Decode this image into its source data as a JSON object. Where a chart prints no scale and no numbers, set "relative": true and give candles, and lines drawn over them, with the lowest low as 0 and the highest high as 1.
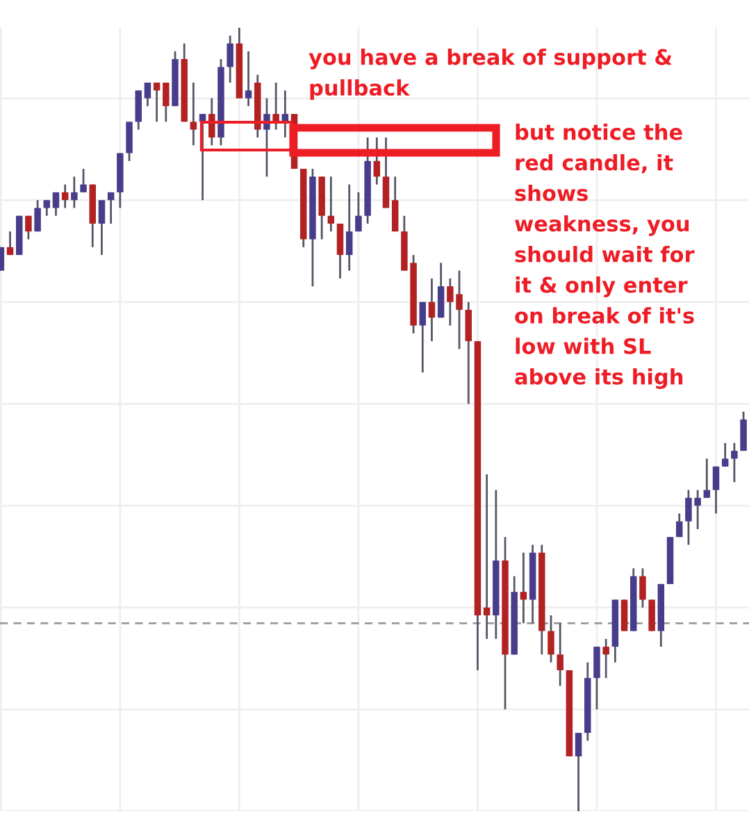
{
  "chart_data": {
    "type": "candlestick",
    "relative": true,
    "grid": true,
    "categories": [
      null,
      null,
      null,
      null,
      null,
      null,
      null,
      null,
      null,
      null,
      null,
      null,
      null,
      null,
      null,
      null,
      null,
      null,
      null,
      null,
      null,
      null,
      null,
      null,
      null,
      null,
      null,
      null,
      null,
      null,
      null,
      null,
      null,
      null,
      null,
      null,
      null,
      null,
      null,
      null,
      null,
      null,
      null,
      null,
      null,
      null,
      null,
      null,
      null,
      null,
      null,
      null,
      null,
      null,
      null,
      null,
      null,
      null,
      null,
      null,
      null,
      null,
      null,
      null,
      null,
      null,
      null,
      null,
      null,
      null,
      null,
      null,
      null,
      null,
      null,
      null,
      null,
      null,
      null,
      null,
      null,
      null
    ],
    "ohlc": [
      [
        0.69,
        0.72,
        0.69,
        0.72
      ],
      [
        0.72,
        0.74,
        0.71,
        0.71
      ],
      [
        0.71,
        0.76,
        0.71,
        0.76
      ],
      [
        0.76,
        0.76,
        0.73,
        0.74
      ],
      [
        0.74,
        0.78,
        0.74,
        0.77
      ],
      [
        0.77,
        0.78,
        0.76,
        0.78
      ],
      [
        0.77,
        0.79,
        0.76,
        0.79
      ],
      [
        0.79,
        0.8,
        0.77,
        0.78
      ],
      [
        0.78,
        0.81,
        0.77,
        0.79
      ],
      [
        0.79,
        0.82,
        0.79,
        0.8
      ],
      [
        0.8,
        0.8,
        0.72,
        0.75
      ],
      [
        0.75,
        0.78,
        0.71,
        0.78
      ],
      [
        0.78,
        0.79,
        0.75,
        0.79
      ],
      [
        0.79,
        0.84,
        0.77,
        0.84
      ],
      [
        0.84,
        0.88,
        0.83,
        0.88
      ],
      [
        0.88,
        0.92,
        0.87,
        0.92
      ],
      [
        0.91,
        0.93,
        0.9,
        0.93
      ],
      [
        0.93,
        0.93,
        0.88,
        0.92
      ],
      [
        0.93,
        0.93,
        0.88,
        0.9
      ],
      [
        0.9,
        0.97,
        0.9,
        0.96
      ],
      [
        0.96,
        0.98,
        0.88,
        0.88
      ],
      [
        0.88,
        0.93,
        0.85,
        0.87
      ],
      [
        0.88,
        0.89,
        0.78,
        0.89
      ],
      [
        0.89,
        0.91,
        0.85,
        0.86
      ],
      [
        0.86,
        0.96,
        0.85,
        0.95
      ],
      [
        0.95,
        0.99,
        0.93,
        0.98
      ],
      [
        0.98,
        1,
        0.91,
        0.91
      ],
      [
        0.91,
        0.97,
        0.9,
        0.92
      ],
      [
        0.93,
        0.94,
        0.86,
        0.87
      ],
      [
        0.87,
        0.91,
        0.81,
        0.89
      ],
      [
        0.89,
        0.93,
        0.87,
        0.88
      ],
      [
        0.88,
        0.92,
        0.86,
        0.89
      ],
      [
        0.89,
        0.89,
        0.82,
        0.82
      ],
      [
        0.82,
        0.82,
        0.72,
        0.73
      ],
      [
        0.73,
        0.82,
        0.67,
        0.81
      ],
      [
        0.81,
        0.81,
        0.73,
        0.76
      ],
      [
        0.76,
        0.81,
        0.74,
        0.75
      ],
      [
        0.75,
        0.75,
        0.68,
        0.71
      ],
      [
        0.71,
        0.8,
        0.69,
        0.74
      ],
      [
        0.74,
        0.79,
        0.74,
        0.76
      ],
      [
        0.76,
        0.86,
        0.75,
        0.83
      ],
      [
        0.83,
        0.86,
        0.8,
        0.81
      ],
      [
        0.81,
        0.86,
        0.77,
        0.77
      ],
      [
        0.78,
        0.81,
        0.74,
        0.74
      ],
      [
        0.74,
        0.76,
        0.69,
        0.69
      ],
      [
        0.7,
        0.71,
        0.61,
        0.62
      ],
      [
        0.62,
        0.65,
        0.56,
        0.65
      ],
      [
        0.65,
        0.68,
        0.6,
        0.63
      ],
      [
        0.63,
        0.7,
        0.63,
        0.67
      ],
      [
        0.67,
        0.68,
        0.62,
        0.65
      ],
      [
        0.66,
        0.69,
        0.59,
        0.64
      ],
      [
        0.64,
        0.65,
        0.52,
        0.6
      ],
      [
        0.6,
        0.6,
        0.18,
        0.25
      ],
      [
        0.26,
        0.43,
        0.22,
        0.25
      ],
      [
        0.25,
        0.41,
        0.22,
        0.32
      ],
      [
        0.32,
        0.35,
        0.13,
        0.2
      ],
      [
        0.2,
        0.3,
        0.2,
        0.28
      ],
      [
        0.28,
        0.33,
        0.24,
        0.27
      ],
      [
        0.27,
        0.34,
        0.24,
        0.33
      ],
      [
        0.33,
        0.34,
        0.2,
        0.23
      ],
      [
        0.23,
        0.25,
        0.19,
        0.2
      ],
      [
        0.2,
        0.24,
        0.16,
        0.18
      ],
      [
        0.18,
        0.18,
        0.07,
        0.07
      ],
      [
        0.07,
        0.1,
        0,
        0.1
      ],
      [
        0.1,
        0.19,
        0.09,
        0.17
      ],
      [
        0.17,
        0.21,
        0.13,
        0.21
      ],
      [
        0.21,
        0.22,
        0.17,
        0.2
      ],
      [
        0.21,
        0.27,
        0.19,
        0.27
      ],
      [
        0.27,
        0.27,
        0.23,
        0.23
      ],
      [
        0.23,
        0.31,
        0.23,
        0.3
      ],
      [
        0.3,
        0.31,
        0.26,
        0.27
      ],
      [
        0.27,
        0.27,
        0.23,
        0.23
      ],
      [
        0.23,
        0.29,
        0.21,
        0.29
      ],
      [
        0.29,
        0.35,
        0.29,
        0.35
      ],
      [
        0.35,
        0.38,
        0.35,
        0.37
      ],
      [
        0.37,
        0.41,
        0.34,
        0.4
      ],
      [
        0.39,
        0.41,
        0.36,
        0.4
      ],
      [
        0.4,
        0.45,
        0.4,
        0.41
      ],
      [
        0.41,
        0.44,
        0.38,
        0.44
      ],
      [
        0.44,
        0.47,
        0.44,
        0.45
      ],
      [
        0.45,
        0.47,
        0.42,
        0.46
      ],
      [
        0.46,
        0.51,
        0.46,
        0.5
      ]
    ],
    "colors": [
      "#483d8b",
      "#b22222",
      "#483d8b",
      "#b22222",
      "#483d8b",
      "#483d8b",
      "#483d8b",
      "#b22222",
      "#483d8b",
      "#483d8b",
      "#b22222",
      "#483d8b",
      "#483d8b",
      "#483d8b",
      "#483d8b",
      "#483d8b",
      "#483d8b",
      "#b22222",
      "#b22222",
      "#483d8b",
      "#b22222",
      "#b22222",
      "#483d8b",
      "#b22222",
      "#483d8b",
      "#483d8b",
      "#b22222",
      "#483d8b",
      "#b22222",
      "#483d8b",
      "#b22222",
      "#483d8b",
      "#b22222",
      "#b22222",
      "#483d8b",
      "#b22222",
      "#b22222",
      "#b22222",
      "#483d8b",
      "#483d8b",
      "#483d8b",
      "#b22222",
      "#b22222",
      "#b22222",
      "#b22222",
      "#b22222",
      "#483d8b",
      "#b22222",
      "#483d8b",
      "#b22222",
      "#b22222",
      "#b22222",
      "#b22222",
      "#b22222",
      "#483d8b",
      "#b22222",
      "#483d8b",
      "#b22222",
      "#483d8b",
      "#b22222",
      "#b22222",
      "#b22222",
      "#b22222",
      "#483d8b",
      "#483d8b",
      "#483d8b",
      "#b22222",
      "#483d8b",
      "#b22222",
      "#483d8b",
      "#b22222",
      "#b22222",
      "#483d8b",
      "#483d8b",
      "#483d8b",
      "#483d8b",
      "#483d8b",
      "#483d8b",
      "#483d8b",
      "#483d8b",
      "#483d8b",
      "#483d8b"
    ],
    "ref_lines": [
      {
        "axis": "y",
        "value": 0.24,
        "color": "#999999",
        "line_style": "dashed"
      }
    ],
    "annotations": [
      "you have a break of support &\npullback",
      "but notice the\nred candle, it\nshows\nweakness, you\nshould wait for\nit & only enter\non break of it's\nlow with SL\nabove its high"
    ]
  }
}
